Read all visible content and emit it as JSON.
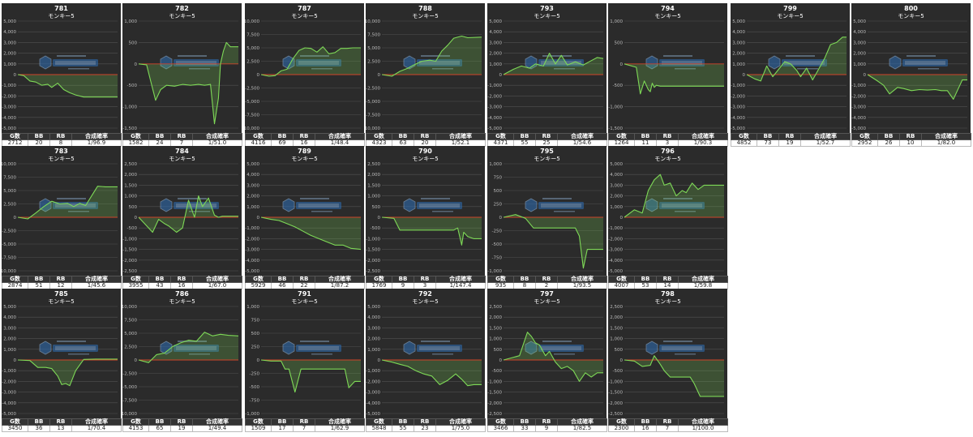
{
  "labels": {
    "machine": "モンキー5",
    "headers": [
      "G数",
      "BB",
      "RB",
      "合成確率"
    ]
  },
  "colors": {
    "panel_bg": "#2b2b2b",
    "grid": "#505050",
    "line": "#7ed957",
    "fill": "rgba(126,217,87,0.22)",
    "zero": "#d0442a",
    "axis_text": "#bbbbbb"
  },
  "chart_data": [
    {
      "type": "area",
      "title": "781",
      "subtitle": "モンキー5",
      "yticks": [
        "5,000",
        "4,000",
        "3,000",
        "2,000",
        "1,000",
        "0",
        "-1,000",
        "-2,000",
        "-3,000",
        "-4,000",
        "-5,000"
      ],
      "ylim": [
        -5000,
        5000
      ],
      "x": [
        0,
        0.06,
        0.12,
        0.18,
        0.24,
        0.3,
        0.34,
        0.4,
        0.46,
        0.52,
        0.58,
        0.66,
        0.76,
        0.86,
        1.0
      ],
      "y": [
        0,
        -100,
        -600,
        -700,
        -1000,
        -900,
        -1200,
        -800,
        -1400,
        -1700,
        -1900,
        -2100,
        -2100,
        -2100,
        -2100
      ],
      "stats": {
        "games": "2712",
        "bb": "20",
        "rb": "8",
        "rate": "1/96.9"
      }
    },
    {
      "type": "area",
      "title": "782",
      "subtitle": "モンキー5",
      "yticks": [
        "1,000",
        "500",
        "0",
        "-500",
        "-1,000",
        "-1,500"
      ],
      "ylim": [
        -1500,
        1000
      ],
      "x": [
        0,
        0.08,
        0.12,
        0.17,
        0.22,
        0.28,
        0.36,
        0.44,
        0.52,
        0.6,
        0.66,
        0.72,
        0.76,
        0.8,
        0.82,
        0.85,
        0.88,
        0.92,
        1.0
      ],
      "y": [
        0,
        -20,
        -400,
        -850,
        -600,
        -500,
        -520,
        -480,
        -500,
        -480,
        -500,
        -480,
        -1400,
        -800,
        0,
        300,
        500,
        400,
        400
      ],
      "stats": {
        "games": "1582",
        "bb": "24",
        "rb": "7",
        "rate": "1/51.0"
      }
    },
    {
      "type": "area",
      "title": "787",
      "subtitle": "モンキー5",
      "yticks": [
        "10,000",
        "7,500",
        "5,000",
        "2,500",
        "0",
        "-2,500",
        "-5,000",
        "-7,500",
        "-10,000"
      ],
      "ylim": [
        -10000,
        10000
      ],
      "x": [
        0,
        0.08,
        0.14,
        0.2,
        0.26,
        0.32,
        0.38,
        0.44,
        0.5,
        0.56,
        0.62,
        0.68,
        0.74,
        0.8,
        0.86,
        0.92,
        1.0
      ],
      "y": [
        0,
        -300,
        -200,
        700,
        1000,
        3000,
        4500,
        5000,
        4900,
        4200,
        5200,
        3900,
        4100,
        4900,
        4900,
        5000,
        5000
      ],
      "stats": {
        "games": "4116",
        "bb": "69",
        "rb": "16",
        "rate": "1/48.4"
      }
    },
    {
      "type": "area",
      "title": "788",
      "subtitle": "モンキー5",
      "yticks": [
        "10,000",
        "7,500",
        "5,000",
        "2,500",
        "0",
        "-2,500",
        "-5,000",
        "-7,500",
        "-10,000"
      ],
      "ylim": [
        -10000,
        10000
      ],
      "x": [
        0,
        0.1,
        0.18,
        0.26,
        0.32,
        0.4,
        0.48,
        0.54,
        0.6,
        0.66,
        0.72,
        0.8,
        0.86,
        1.0
      ],
      "y": [
        0,
        -300,
        600,
        1200,
        1800,
        2500,
        2700,
        2500,
        4400,
        5500,
        6800,
        7200,
        6900,
        7000
      ],
      "stats": {
        "games": "4323",
        "bb": "63",
        "rb": "20",
        "rate": "1/52.1"
      }
    },
    {
      "type": "area",
      "title": "793",
      "subtitle": "モンキー5",
      "yticks": [
        "5,000",
        "4,000",
        "3,000",
        "2,000",
        "1,000",
        "0",
        "-1,000",
        "-2,000",
        "-3,000",
        "-4,000",
        "-5,000"
      ],
      "ylim": [
        -5000,
        5000
      ],
      "x": [
        0,
        0.06,
        0.1,
        0.18,
        0.26,
        0.32,
        0.4,
        0.46,
        0.52,
        0.58,
        0.64,
        0.72,
        0.8,
        0.88,
        0.94,
        1.0
      ],
      "y": [
        0,
        300,
        500,
        800,
        600,
        1000,
        800,
        2000,
        1000,
        1800,
        900,
        1200,
        900,
        1300,
        1600,
        1500
      ],
      "stats": {
        "games": "4371",
        "bb": "55",
        "rb": "25",
        "rate": "1/54.6"
      }
    },
    {
      "type": "area",
      "title": "794",
      "subtitle": "モンキー5",
      "yticks": [
        "1,000",
        "500",
        "0",
        "-500",
        "-1,000",
        "-1,500"
      ],
      "ylim": [
        -1500,
        1000
      ],
      "x": [
        0,
        0.12,
        0.16,
        0.2,
        0.24,
        0.26,
        0.28,
        0.3,
        0.32,
        0.36,
        0.42,
        0.5,
        0.6,
        0.7,
        0.8,
        0.9,
        1.0
      ],
      "y": [
        0,
        -80,
        -700,
        -400,
        -600,
        -650,
        -450,
        -550,
        -500,
        -520,
        -520,
        -520,
        -520,
        -520,
        -520,
        -520,
        -520
      ],
      "stats": {
        "games": "1264",
        "bb": "11",
        "rb": "3",
        "rate": "1/90.3"
      }
    },
    {
      "type": "area",
      "title": "799",
      "subtitle": "モンキー5",
      "yticks": [
        "5,000",
        "4,000",
        "3,000",
        "2,000",
        "1,000",
        "0",
        "-1,000",
        "-2,000",
        "-3,000",
        "-4,000",
        "-5,000"
      ],
      "ylim": [
        -5000,
        5000
      ],
      "x": [
        0,
        0.08,
        0.14,
        0.2,
        0.26,
        0.32,
        0.38,
        0.44,
        0.5,
        0.54,
        0.6,
        0.66,
        0.72,
        0.78,
        0.84,
        0.9,
        0.96,
        1.0
      ],
      "y": [
        0,
        -400,
        -600,
        800,
        -200,
        500,
        1200,
        1000,
        400,
        -200,
        600,
        -500,
        500,
        1500,
        2800,
        3000,
        3500,
        3500
      ],
      "stats": {
        "games": "4852",
        "bb": "73",
        "rb": "19",
        "rate": "1/52.7"
      }
    },
    {
      "type": "area",
      "title": "800",
      "subtitle": "モンキー5",
      "yticks": [
        "5,000",
        "4,000",
        "3,000",
        "2,000",
        "1,000",
        "0",
        "-1,000",
        "-2,000",
        "-3,000",
        "-4,000",
        "-5,000"
      ],
      "ylim": [
        -5000,
        5000
      ],
      "x": [
        0,
        0.1,
        0.16,
        0.22,
        0.3,
        0.36,
        0.44,
        0.52,
        0.6,
        0.68,
        0.74,
        0.8,
        0.86,
        0.9,
        0.95,
        1.0
      ],
      "y": [
        0,
        -600,
        -1000,
        -1800,
        -1200,
        -1300,
        -1500,
        -1400,
        -1450,
        -1400,
        -1500,
        -1500,
        -2300,
        -1500,
        -500,
        -500
      ],
      "stats": {
        "games": "2952",
        "bb": "26",
        "rb": "10",
        "rate": "1/82.0"
      }
    },
    {
      "type": "area",
      "title": "783",
      "subtitle": "モンキー5",
      "yticks": [
        "10,000",
        "7,500",
        "5,000",
        "2,500",
        "0",
        "-2,500",
        "-5,000",
        "-7,500",
        "-10,000"
      ],
      "ylim": [
        -10000,
        10000
      ],
      "x": [
        0,
        0.1,
        0.18,
        0.26,
        0.34,
        0.42,
        0.5,
        0.56,
        0.62,
        0.68,
        0.74,
        0.8,
        0.88,
        1.0
      ],
      "y": [
        0,
        -300,
        800,
        2000,
        3000,
        2500,
        2600,
        2000,
        2600,
        2200,
        4000,
        5800,
        5700,
        5700
      ],
      "stats": {
        "games": "2874",
        "bb": "51",
        "rb": "12",
        "rate": "1/45.6"
      }
    },
    {
      "type": "area",
      "title": "784",
      "subtitle": "モンキー5",
      "yticks": [
        "2,500",
        "2,000",
        "1,500",
        "1,000",
        "500",
        "0",
        "-500",
        "-1,000",
        "-1,500",
        "-2,000",
        "-2,500"
      ],
      "ylim": [
        -2500,
        2500
      ],
      "x": [
        0,
        0.06,
        0.14,
        0.2,
        0.26,
        0.3,
        0.38,
        0.44,
        0.5,
        0.56,
        0.6,
        0.64,
        0.7,
        0.76,
        0.8,
        0.84,
        0.9,
        1.0
      ],
      "y": [
        0,
        -300,
        -700,
        -100,
        -300,
        -400,
        -700,
        -500,
        800,
        0,
        1000,
        500,
        900,
        100,
        0,
        50,
        50,
        50
      ],
      "stats": {
        "games": "3955",
        "bb": "43",
        "rb": "16",
        "rate": "1/67.0"
      }
    },
    {
      "type": "area",
      "title": "789",
      "subtitle": "モンキー5",
      "yticks": [
        "5,000",
        "4,000",
        "3,000",
        "2,000",
        "1,000",
        "0",
        "-1,000",
        "-2,000",
        "-3,000",
        "-4,000",
        "-5,000"
      ],
      "ylim": [
        -5000,
        5000
      ],
      "x": [
        0,
        0.1,
        0.18,
        0.26,
        0.34,
        0.42,
        0.5,
        0.58,
        0.66,
        0.74,
        0.82,
        0.9,
        1.0
      ],
      "y": [
        0,
        -200,
        -300,
        -600,
        -900,
        -1300,
        -1700,
        -2000,
        -2300,
        -2600,
        -2600,
        -2900,
        -3000
      ],
      "stats": {
        "games": "5929",
        "bb": "46",
        "rb": "22",
        "rate": "1/87.2"
      }
    },
    {
      "type": "area",
      "title": "790",
      "subtitle": "モンキー5",
      "yticks": [
        "2,500",
        "2,000",
        "1,500",
        "1,000",
        "500",
        "0",
        "-500",
        "-1,000",
        "-1,500",
        "-2,000",
        "-2,500"
      ],
      "ylim": [
        -2500,
        2500
      ],
      "x": [
        0,
        0.12,
        0.18,
        0.3,
        0.42,
        0.54,
        0.66,
        0.72,
        0.76,
        0.8,
        0.82,
        0.86,
        0.92,
        1.0
      ],
      "y": [
        0,
        -50,
        -600,
        -600,
        -600,
        -600,
        -600,
        -600,
        -500,
        -1300,
        -700,
        -900,
        -1000,
        -1000
      ],
      "stats": {
        "games": "1769",
        "bb": "9",
        "rb": "3",
        "rate": "1/147.4"
      }
    },
    {
      "type": "area",
      "title": "795",
      "subtitle": "モンキー5",
      "yticks": [
        "1,000",
        "750",
        "500",
        "250",
        "0",
        "-250",
        "-500",
        "-750",
        "-1,000"
      ],
      "ylim": [
        -1000,
        1000
      ],
      "x": [
        0,
        0.12,
        0.22,
        0.3,
        0.4,
        0.5,
        0.6,
        0.66,
        0.72,
        0.76,
        0.8,
        0.84,
        0.9,
        1.0
      ],
      "y": [
        0,
        50,
        -20,
        -200,
        -200,
        -200,
        -200,
        -200,
        -200,
        -350,
        -950,
        -600,
        -600,
        -600
      ],
      "stats": {
        "games": "935",
        "bb": "8",
        "rb": "2",
        "rate": "1/93.5"
      }
    },
    {
      "type": "area",
      "title": "796",
      "subtitle": "モンキー5",
      "yticks": [
        "5,000",
        "4,000",
        "3,000",
        "2,000",
        "1,000",
        "0",
        "-1,000",
        "-2,000",
        "-3,000",
        "-4,000",
        "-5,000"
      ],
      "ylim": [
        -5000,
        5000
      ],
      "x": [
        0,
        0.1,
        0.18,
        0.24,
        0.3,
        0.36,
        0.4,
        0.46,
        0.52,
        0.58,
        0.62,
        0.68,
        0.74,
        0.8,
        0.88,
        1.0
      ],
      "y": [
        0,
        700,
        400,
        2500,
        3500,
        4000,
        3000,
        3200,
        2000,
        2500,
        2300,
        3200,
        2600,
        3000,
        3000,
        3000
      ],
      "stats": {
        "games": "4007",
        "bb": "53",
        "rb": "14",
        "rate": "1/59.8"
      }
    },
    {
      "type": "area",
      "title": "785",
      "subtitle": "モンキー5",
      "yticks": [
        "5,000",
        "4,000",
        "3,000",
        "2,000",
        "1,000",
        "0",
        "-1,000",
        "-2,000",
        "-3,000",
        "-4,000",
        "-5,000"
      ],
      "ylim": [
        -5000,
        5000
      ],
      "x": [
        0,
        0.12,
        0.2,
        0.28,
        0.34,
        0.4,
        0.44,
        0.48,
        0.52,
        0.58,
        0.66,
        0.78,
        0.9,
        1.0
      ],
      "y": [
        0,
        -50,
        -700,
        -700,
        -800,
        -1500,
        -2300,
        -2200,
        -2400,
        -1000,
        50,
        80,
        80,
        80
      ],
      "stats": {
        "games": "3450",
        "bb": "36",
        "rb": "13",
        "rate": "1/70.4"
      }
    },
    {
      "type": "area",
      "title": "786",
      "subtitle": "モンキー5",
      "yticks": [
        "10,000",
        "7,500",
        "5,000",
        "2,500",
        "0",
        "-2,500",
        "-5,000",
        "-7,500",
        "-10,000"
      ],
      "ylim": [
        -10000,
        10000
      ],
      "x": [
        0,
        0.1,
        0.18,
        0.26,
        0.34,
        0.42,
        0.5,
        0.58,
        0.66,
        0.74,
        0.82,
        0.9,
        1.0
      ],
      "y": [
        0,
        -500,
        1000,
        1300,
        2500,
        3200,
        3700,
        3500,
        5200,
        4500,
        4800,
        4600,
        4500
      ],
      "stats": {
        "games": "4153",
        "bb": "65",
        "rb": "19",
        "rate": "1/49.4"
      }
    },
    {
      "type": "area",
      "title": "791",
      "subtitle": "モンキー5",
      "yticks": [
        "1,000",
        "750",
        "500",
        "250",
        "0",
        "-250",
        "-500",
        "-750",
        "-1,000"
      ],
      "ylim": [
        -1000,
        1000
      ],
      "x": [
        0,
        0.1,
        0.2,
        0.24,
        0.28,
        0.34,
        0.4,
        0.46,
        0.5,
        0.54,
        0.6,
        0.66,
        0.72,
        0.78,
        0.84,
        0.88,
        0.94,
        1.0
      ],
      "y": [
        0,
        -20,
        -20,
        -170,
        -170,
        -600,
        -170,
        -170,
        -170,
        -170,
        -170,
        -170,
        -170,
        -170,
        -170,
        -520,
        -400,
        -400
      ],
      "stats": {
        "games": "1509",
        "bb": "17",
        "rb": "7",
        "rate": "1/62.9"
      }
    },
    {
      "type": "area",
      "title": "792",
      "subtitle": "モンキー5",
      "yticks": [
        "5,000",
        "4,000",
        "3,000",
        "2,000",
        "1,000",
        "0",
        "-1,000",
        "-2,000",
        "-3,000",
        "-4,000",
        "-5,000"
      ],
      "ylim": [
        -5000,
        5000
      ],
      "x": [
        0,
        0.1,
        0.18,
        0.26,
        0.34,
        0.42,
        0.5,
        0.58,
        0.66,
        0.74,
        0.8,
        0.86,
        0.92,
        1.0
      ],
      "y": [
        0,
        -200,
        -400,
        -600,
        -1000,
        -1300,
        -1500,
        -2300,
        -1900,
        -1300,
        -1800,
        -2400,
        -2300,
        -2300
      ],
      "stats": {
        "games": "5848",
        "bb": "55",
        "rb": "23",
        "rate": "1/75.0"
      }
    },
    {
      "type": "area",
      "title": "797",
      "subtitle": "モンキー5",
      "yticks": [
        "2,500",
        "2,000",
        "1,500",
        "1,000",
        "500",
        "0",
        "-500",
        "-1,000",
        "-1,500",
        "-2,000",
        "-2,500"
      ],
      "ylim": [
        -2500,
        2500
      ],
      "x": [
        0,
        0.08,
        0.16,
        0.24,
        0.28,
        0.32,
        0.36,
        0.42,
        0.46,
        0.52,
        0.58,
        0.64,
        0.7,
        0.76,
        0.82,
        0.88,
        0.94,
        1.0
      ],
      "y": [
        0,
        100,
        200,
        1300,
        1100,
        800,
        700,
        200,
        400,
        -100,
        -400,
        -300,
        -500,
        -1000,
        -600,
        -800,
        -600,
        -600
      ],
      "stats": {
        "games": "3466",
        "bb": "33",
        "rb": "9",
        "rate": "1/82.5"
      }
    },
    {
      "type": "area",
      "title": "798",
      "subtitle": "モンキー5",
      "yticks": [
        "2,500",
        "2,000",
        "1,500",
        "1,000",
        "500",
        "0",
        "-500",
        "-1,000",
        "-1,500",
        "-2,000",
        "-2,500"
      ],
      "ylim": [
        -2500,
        2500
      ],
      "x": [
        0,
        0.1,
        0.18,
        0.26,
        0.3,
        0.36,
        0.4,
        0.46,
        0.56,
        0.66,
        0.7,
        0.76,
        0.82,
        0.9,
        1.0
      ],
      "y": [
        0,
        -50,
        -300,
        -250,
        200,
        -200,
        -500,
        -800,
        -800,
        -800,
        -1100,
        -1700,
        -1700,
        -1700,
        -1700
      ],
      "stats": {
        "games": "2300",
        "bb": "16",
        "rb": "7",
        "rate": "1/100.0"
      }
    }
  ]
}
